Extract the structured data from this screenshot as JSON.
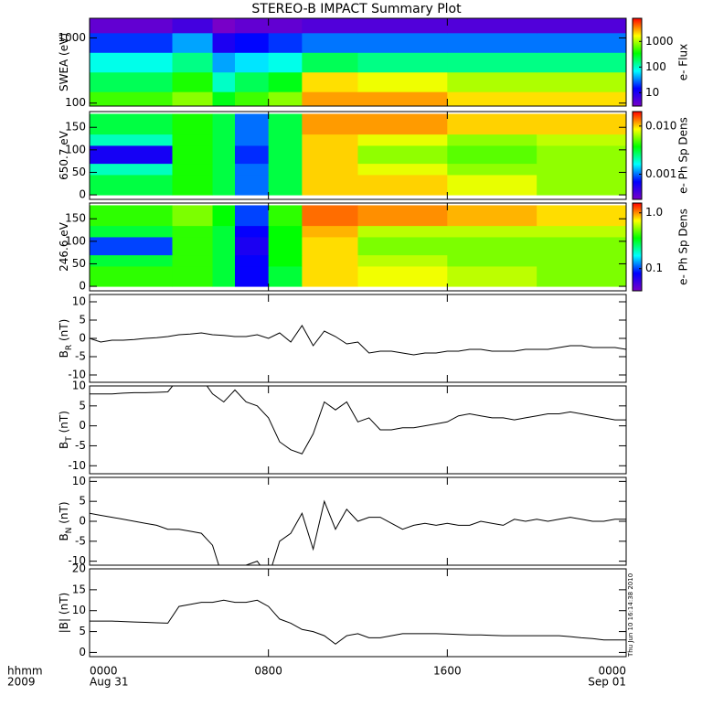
{
  "title": "STEREO-B IMPACT Summary Plot",
  "left_labels": [
    "hhmm",
    "2009"
  ],
  "timestamp": "Thu Jun 10 16:14:38 2010",
  "colormap": [
    "#7800c8",
    "#0000ff",
    "#00ffff",
    "#00ff00",
    "#ffff00",
    "#ff0000"
  ],
  "x_axis": {
    "xlim": [
      0,
      24
    ],
    "xticks": [
      {
        "value": 0,
        "label": "0000"
      },
      {
        "value": 8,
        "label": "0800"
      },
      {
        "value": 16,
        "label": "1600"
      },
      {
        "value": 24,
        "label": "0000"
      }
    ],
    "dates": [
      {
        "value": 0,
        "label": "Aug 31"
      },
      {
        "value": 24,
        "label": "Sep 01"
      }
    ]
  },
  "chart_data": [
    {
      "type": "heatmap",
      "ylabel": "SWEA (eV)",
      "log_y": true,
      "ylim": [
        90,
        2000
      ],
      "yticks": [
        100,
        1000
      ],
      "x_edges": [
        0,
        3.7,
        5.5,
        6.5,
        8,
        9.5,
        12,
        16,
        20,
        24
      ],
      "y_edges": [
        90,
        150,
        300,
        600,
        1200,
        2000
      ],
      "values": [
        [
          500,
          800,
          300,
          500,
          800,
          3000,
          3000,
          2000,
          2000
        ],
        [
          200,
          400,
          100,
          200,
          300,
          2000,
          1500,
          1000,
          1000
        ],
        [
          80,
          150,
          40,
          60,
          80,
          200,
          150,
          150,
          150
        ],
        [
          20,
          40,
          10,
          15,
          20,
          30,
          30,
          30,
          30
        ],
        [
          4,
          6,
          3,
          4,
          4,
          5,
          5,
          5,
          5
        ]
      ],
      "zlim": [
        3,
        8000
      ],
      "zticks": [
        10,
        100,
        1000
      ],
      "zlabel": "e- Flux"
    },
    {
      "type": "heatmap",
      "ylabel": "650.7 eV",
      "log_y": false,
      "ylim": [
        -10,
        185
      ],
      "yticks": [
        0,
        50,
        100,
        150
      ],
      "x_edges": [
        0,
        3.7,
        5.5,
        6.5,
        8,
        9.5,
        12,
        16,
        20,
        24
      ],
      "y_edges": [
        0,
        45,
        70,
        110,
        135,
        180
      ],
      "values": [
        [
          0.003,
          0.004,
          0.003,
          0.001,
          0.003,
          0.01,
          0.01,
          0.008,
          0.006
        ],
        [
          0.002,
          0.004,
          0.003,
          0.001,
          0.003,
          0.01,
          0.008,
          0.006,
          0.006
        ],
        [
          0.0006,
          0.004,
          0.003,
          0.0008,
          0.003,
          0.01,
          0.006,
          0.005,
          0.006
        ],
        [
          0.002,
          0.004,
          0.003,
          0.001,
          0.003,
          0.01,
          0.008,
          0.006,
          0.007
        ],
        [
          0.003,
          0.004,
          0.003,
          0.001,
          0.003,
          0.012,
          0.012,
          0.01,
          0.01
        ]
      ],
      "zlim": [
        0.0003,
        0.02
      ],
      "zticks": [
        0.001,
        {
          "value": 0.01,
          "label": "0.010"
        }
      ],
      "zlabel": "e- Ph Sp Dens"
    },
    {
      "type": "heatmap",
      "ylabel": "246.6 eV",
      "log_y": false,
      "ylim": [
        -10,
        185
      ],
      "yticks": [
        0,
        50,
        100,
        150
      ],
      "x_edges": [
        0,
        3.7,
        5.5,
        6.5,
        8,
        9.5,
        12,
        16,
        20,
        24
      ],
      "y_edges": [
        0,
        45,
        70,
        110,
        135,
        180
      ],
      "values": [
        [
          0.4,
          0.4,
          0.3,
          0.08,
          0.3,
          0.8,
          0.7,
          0.6,
          0.5
        ],
        [
          0.3,
          0.4,
          0.3,
          0.08,
          0.35,
          0.8,
          0.6,
          0.5,
          0.5
        ],
        [
          0.1,
          0.4,
          0.3,
          0.07,
          0.35,
          0.8,
          0.5,
          0.5,
          0.5
        ],
        [
          0.3,
          0.4,
          0.3,
          0.08,
          0.35,
          0.9,
          0.6,
          0.6,
          0.6
        ],
        [
          0.4,
          0.5,
          0.35,
          0.1,
          0.4,
          1.1,
          1.0,
          0.9,
          0.8
        ]
      ],
      "zlim": [
        0.04,
        1.5
      ],
      "zticks": [
        0.1,
        {
          "value": 1,
          "label": "1.0"
        }
      ],
      "zlabel": "e- Ph Sp Dens"
    },
    {
      "type": "line",
      "ylabel": "B",
      "ylabel_sub": "R",
      "ylabel_unit": " (nT)",
      "color": "#000000",
      "ylim": [
        -12,
        12
      ],
      "yticks": [
        -10,
        -5,
        0,
        5,
        10
      ],
      "x": [
        0,
        0.5,
        1,
        1.5,
        2,
        2.5,
        3,
        3.5,
        4,
        4.5,
        5,
        5.5,
        6,
        6.5,
        7,
        7.5,
        8,
        8.5,
        9,
        9.5,
        10,
        10.5,
        11,
        11.5,
        12,
        12.5,
        13,
        13.5,
        14,
        14.5,
        15,
        15.5,
        16,
        16.5,
        17,
        17.5,
        18,
        18.5,
        19,
        19.5,
        20,
        20.5,
        21,
        21.5,
        22,
        22.5,
        23,
        23.5,
        24
      ],
      "values": [
        0,
        -1,
        -0.5,
        -0.5,
        -0.3,
        0,
        0.2,
        0.5,
        1,
        1.2,
        1.5,
        1,
        0.8,
        0.5,
        0.5,
        1,
        0,
        1.5,
        -1,
        3.5,
        -2,
        2,
        0.5,
        -1.5,
        -1,
        -4,
        -3.5,
        -3.5,
        -4,
        -4.5,
        -4,
        -4,
        -3.5,
        -3.5,
        -3,
        -3,
        -3.5,
        -3.5,
        -3.5,
        -3,
        -3,
        -3,
        -2.5,
        -2,
        -2,
        -2.5,
        -2.5,
        -2.5,
        -3
      ]
    },
    {
      "type": "line",
      "ylabel": "B",
      "ylabel_sub": "T",
      "ylabel_unit": " (nT)",
      "color": "#000000",
      "ylim": [
        -12,
        10
      ],
      "yticks": [
        -10,
        -5,
        0,
        5,
        10
      ],
      "x": [
        0,
        0.5,
        1,
        1.5,
        2,
        2.5,
        3,
        3.5,
        4,
        4.5,
        5,
        5.5,
        6,
        6.5,
        7,
        7.5,
        8,
        8.5,
        9,
        9.5,
        10,
        10.5,
        11,
        11.5,
        12,
        12.5,
        13,
        13.5,
        14,
        14.5,
        15,
        15.5,
        16,
        16.5,
        17,
        17.5,
        18,
        18.5,
        19,
        19.5,
        20,
        20.5,
        21,
        21.5,
        22,
        22.5,
        23,
        23.5,
        24
      ],
      "values": [
        8,
        8,
        8,
        8.2,
        8.3,
        8.3,
        8.4,
        8.5,
        12,
        12,
        12,
        8,
        6,
        9,
        6,
        5,
        2,
        -4,
        -6,
        -7,
        -2,
        6,
        4,
        6,
        1,
        2,
        -1,
        -1,
        -0.5,
        -0.5,
        0,
        0.5,
        1,
        2.5,
        3,
        2.5,
        2,
        2,
        1.5,
        2,
        2.5,
        3,
        3,
        3.5,
        3,
        2.5,
        2,
        1.5,
        1.5
      ]
    },
    {
      "type": "line",
      "ylabel": "B",
      "ylabel_sub": "N",
      "ylabel_unit": " (nT)",
      "color": "#000000",
      "ylim": [
        -11,
        11
      ],
      "yticks": [
        -10,
        -5,
        0,
        5,
        10
      ],
      "x": [
        0,
        0.5,
        1,
        1.5,
        2,
        2.5,
        3,
        3.5,
        4,
        4.5,
        5,
        5.5,
        6,
        6.5,
        7,
        7.5,
        8,
        8.5,
        9,
        9.5,
        10,
        10.5,
        11,
        11.5,
        12,
        12.5,
        13,
        13.5,
        14,
        14.5,
        15,
        15.5,
        16,
        16.5,
        17,
        17.5,
        18,
        18.5,
        19,
        19.5,
        20,
        20.5,
        21,
        21.5,
        22,
        22.5,
        23,
        23.5,
        24
      ],
      "values": [
        2,
        1.5,
        1,
        0.5,
        0,
        -0.5,
        -1,
        -2,
        -2,
        -2.5,
        -3,
        -6,
        -15,
        -13,
        -11,
        -10,
        -14,
        -5,
        -3,
        2,
        -7,
        5,
        -2,
        3,
        0,
        1,
        1,
        -0.5,
        -2,
        -1,
        -0.5,
        -1,
        -0.5,
        -1,
        -1,
        0,
        -0.5,
        -1,
        0.5,
        0,
        0.5,
        0,
        0.5,
        1,
        0.5,
        0,
        0,
        0.5,
        0.5
      ]
    },
    {
      "type": "line",
      "ylabel": "|B|",
      "ylabel_unit": " (nT)",
      "color": "#000000",
      "ylim": [
        -1,
        20
      ],
      "yticks": [
        0,
        5,
        10,
        15,
        20
      ],
      "x": [
        0,
        0.5,
        1,
        1.5,
        2,
        2.5,
        3,
        3.5,
        4,
        4.5,
        5,
        5.5,
        6,
        6.5,
        7,
        7.5,
        8,
        8.5,
        9,
        9.5,
        10,
        10.5,
        11,
        11.5,
        12,
        12.5,
        13,
        13.5,
        14,
        14.5,
        15,
        15.5,
        16,
        16.5,
        17,
        17.5,
        18,
        18.5,
        19,
        19.5,
        20,
        20.5,
        21,
        21.5,
        22,
        22.5,
        23,
        23.5,
        24
      ],
      "values": [
        7.5,
        7.5,
        7.5,
        7.4,
        7.3,
        7.2,
        7.1,
        7,
        11,
        11.5,
        12,
        12,
        12.5,
        12,
        12,
        12.5,
        11,
        8,
        7,
        5.5,
        5,
        4,
        2,
        4,
        4.5,
        3.5,
        3.5,
        4,
        4.5,
        4.5,
        4.5,
        4.5,
        4.4,
        4.3,
        4.2,
        4.2,
        4.1,
        4,
        4,
        4,
        4,
        4,
        4,
        3.8,
        3.5,
        3.3,
        3,
        3,
        3
      ]
    }
  ]
}
